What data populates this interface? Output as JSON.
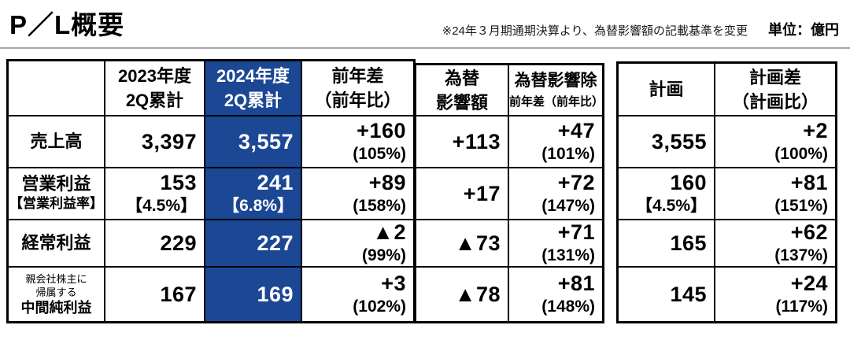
{
  "header": {
    "title": "P／L概要",
    "note": "※24年３月期通期決算より、為替影響額の記載基準を変更",
    "unit": "単位：億円"
  },
  "colors": {
    "highlight": "#1C4795",
    "divider": "#A6A6A6",
    "border": "#000000"
  },
  "table": {
    "head": {
      "fy2023_l1": "2023年度",
      "fy2023_l2": "2Q累計",
      "fy2024_l1": "2024年度",
      "fy2024_l2": "2Q累計",
      "yoy_l1": "前年差",
      "yoy_l2": "（前年比）",
      "fx_l1": "為替",
      "fx_l2": "影響額",
      "fxex_l1": "為替影響除",
      "fxex_l2": "前年差（前年比）",
      "plan": "計画",
      "plandiff_l1": "計画差",
      "plandiff_l2": "（計画比）"
    },
    "rows": [
      {
        "label1": "売上高",
        "fy2023": "3,397",
        "fy2024": "3,557",
        "yoy": "+160",
        "yoy_pct": "(105%)",
        "fx": "+113",
        "fxex": "+47",
        "fxex_pct": "(101%)",
        "plan": "3,555",
        "plandiff": "+2",
        "plandiff_pct": "(100%)"
      },
      {
        "label1": "営業利益",
        "label2": "【営業利益率】",
        "fy2023": "153",
        "fy2023_sub": "【4.5%】",
        "fy2024": "241",
        "fy2024_sub": "【6.8%】",
        "yoy": "+89",
        "yoy_pct": "(158%)",
        "fx": "+17",
        "fxex": "+72",
        "fxex_pct": "(147%)",
        "plan": "160",
        "plan_sub": "【4.5%】",
        "plandiff": "+81",
        "plandiff_pct": "(151%)"
      },
      {
        "label1": "経常利益",
        "fy2023": "229",
        "fy2024": "227",
        "yoy": "▲2",
        "yoy_pct": "(99%)",
        "fx": "▲73",
        "fxex": "+71",
        "fxex_pct": "(131%)",
        "plan": "165",
        "plandiff": "+62",
        "plandiff_pct": "(137%)"
      },
      {
        "label_small1": "親会社株主に",
        "label_small2": "帰属する",
        "label1": "中間純利益",
        "fy2023": "167",
        "fy2024": "169",
        "yoy": "+3",
        "yoy_pct": "(102%)",
        "fx": "▲78",
        "fxex": "+81",
        "fxex_pct": "(148%)",
        "plan": "145",
        "plandiff": "+24",
        "plandiff_pct": "(117%)"
      }
    ]
  }
}
